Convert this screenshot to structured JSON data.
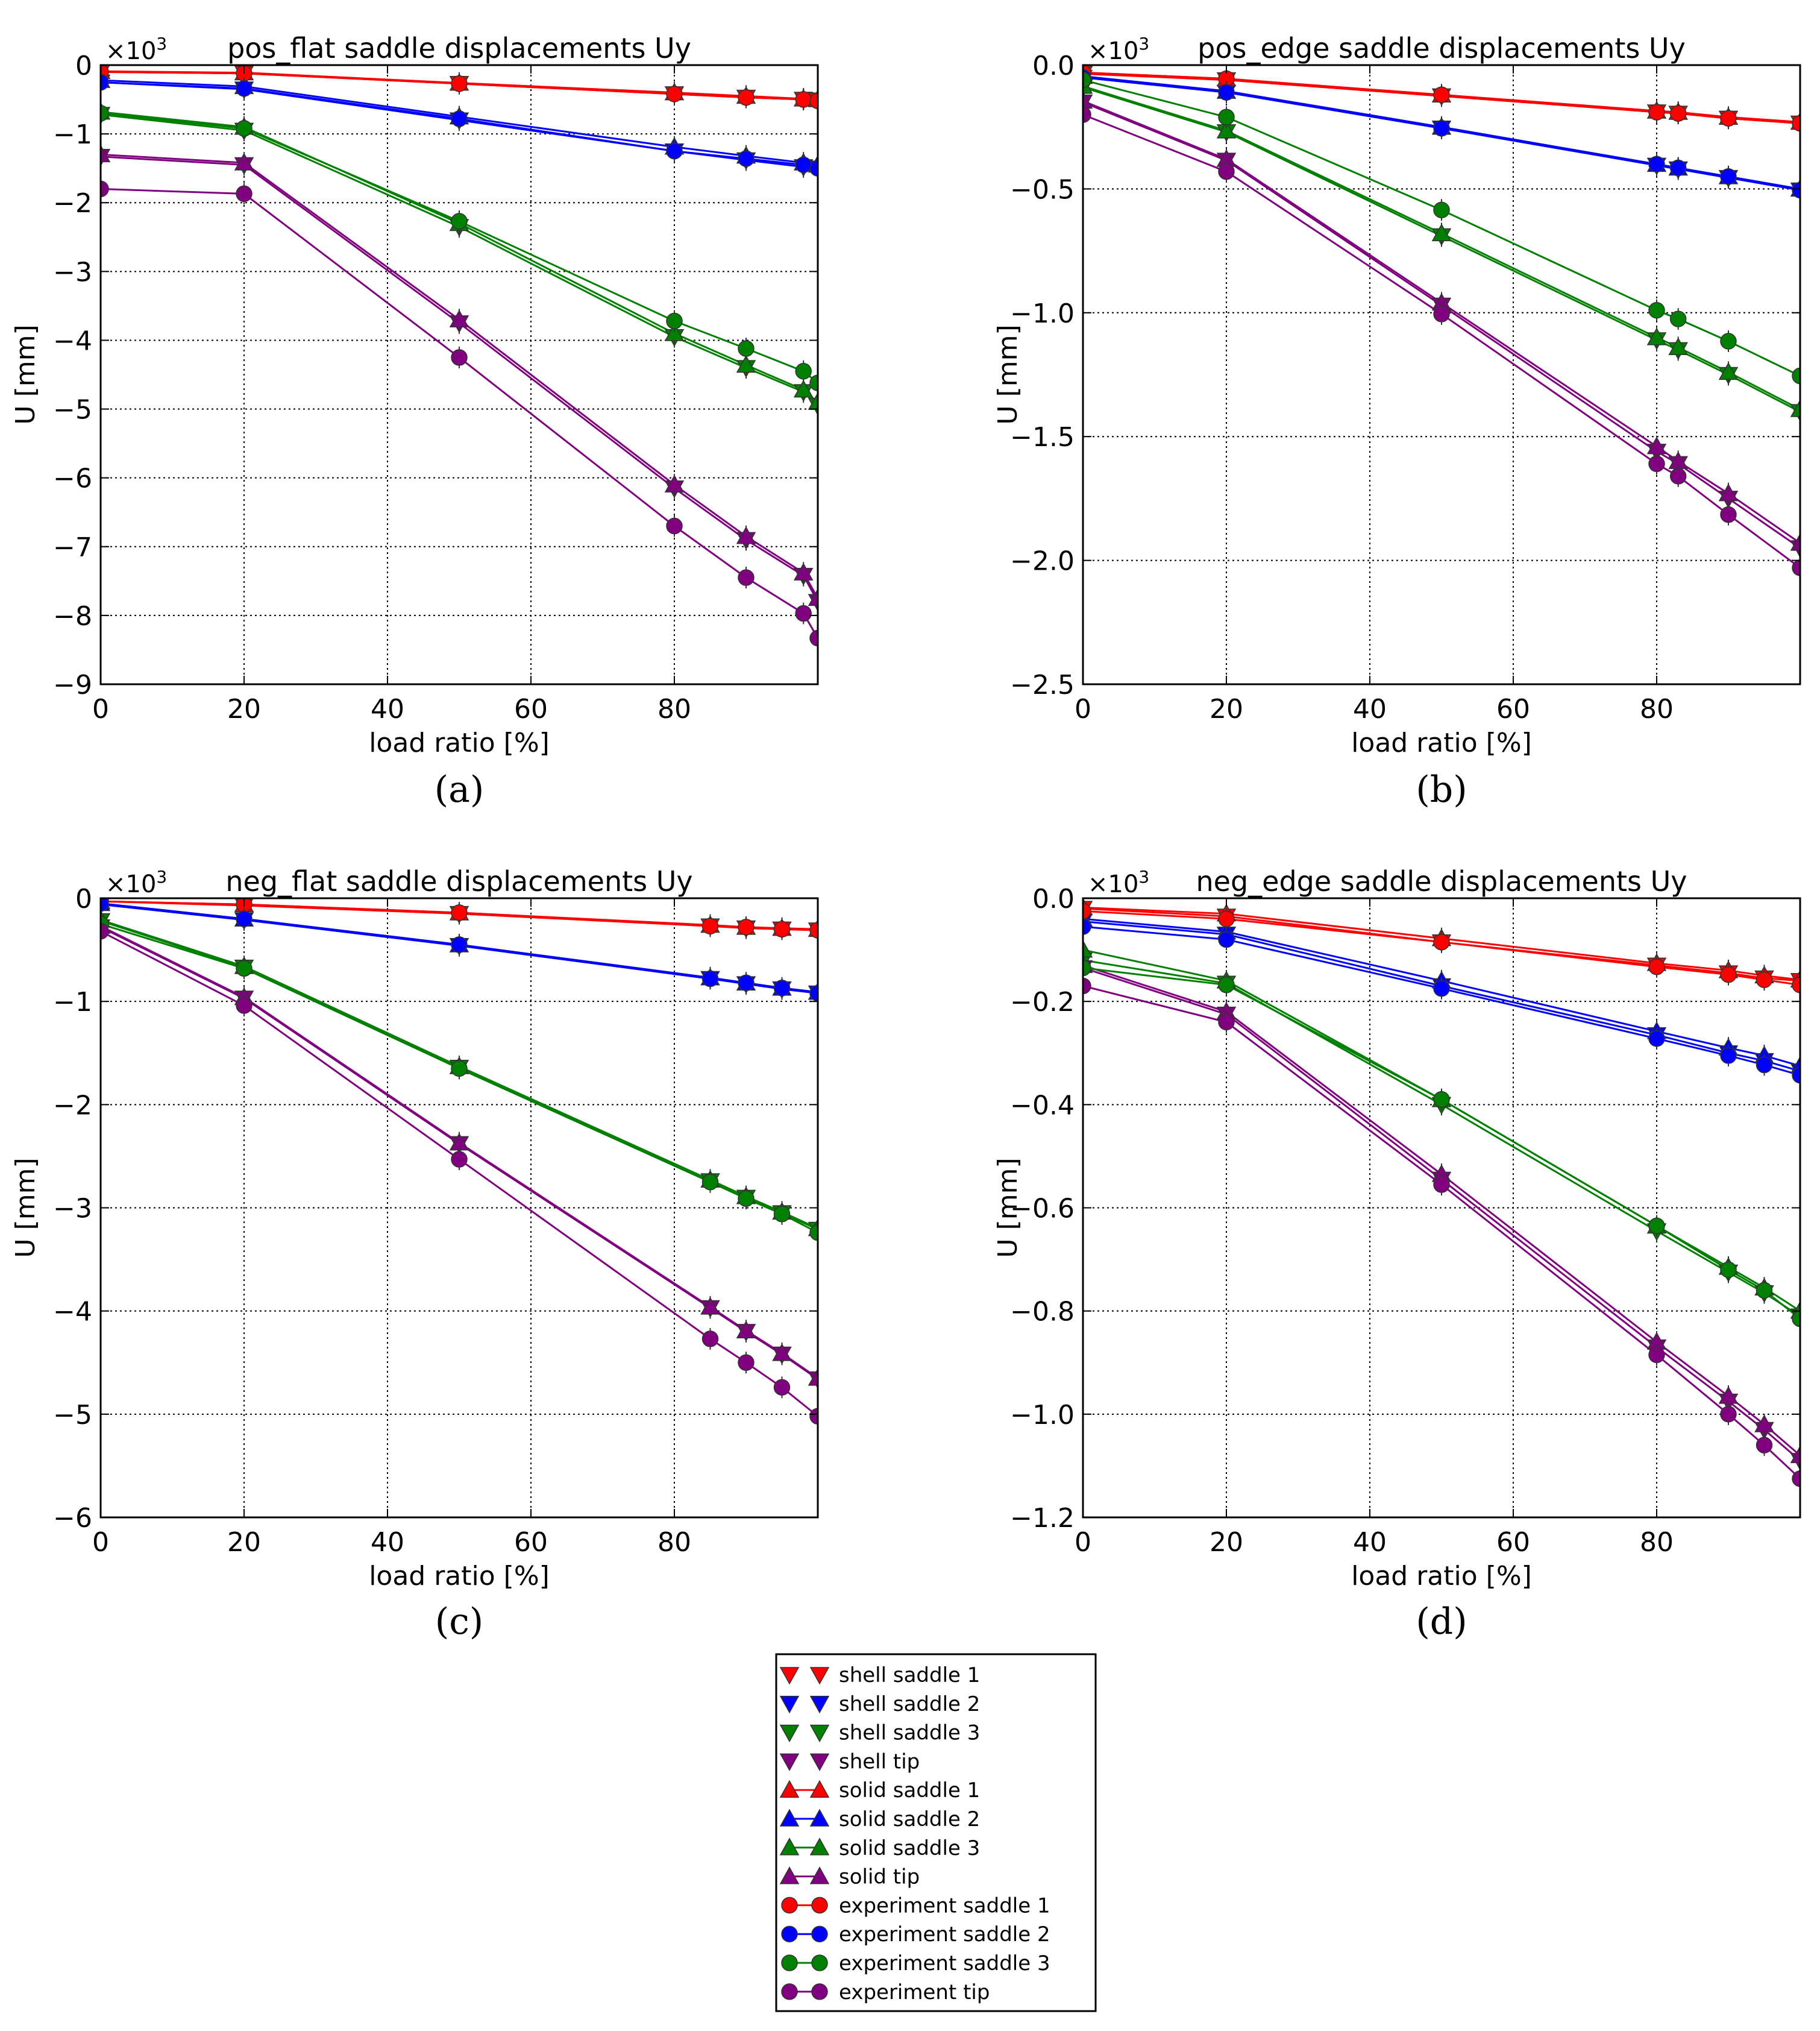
{
  "series_styles": [
    {
      "key": "shell_s1",
      "label": "shell saddle 1",
      "color": "#ff0000",
      "marker": "tri-down"
    },
    {
      "key": "shell_s2",
      "label": "shell saddle 2",
      "color": "#0000ff",
      "marker": "tri-down"
    },
    {
      "key": "shell_s3",
      "label": "shell saddle 3",
      "color": "#008000",
      "marker": "tri-down"
    },
    {
      "key": "shell_tip",
      "label": "shell tip",
      "color": "#800080",
      "marker": "tri-down"
    },
    {
      "key": "solid_s1",
      "label": "solid saddle 1",
      "color": "#ff0000",
      "marker": "tri-up"
    },
    {
      "key": "solid_s2",
      "label": "solid saddle 2",
      "color": "#0000ff",
      "marker": "tri-up"
    },
    {
      "key": "solid_s3",
      "label": "solid saddle 3",
      "color": "#008000",
      "marker": "tri-up"
    },
    {
      "key": "solid_tip",
      "label": "solid tip",
      "color": "#800080",
      "marker": "tri-up"
    },
    {
      "key": "exp_s1",
      "label": "experiment saddle 1",
      "color": "#ff0000",
      "marker": "circle"
    },
    {
      "key": "exp_s2",
      "label": "experiment saddle 2",
      "color": "#0000ff",
      "marker": "circle"
    },
    {
      "key": "exp_s3",
      "label": "experiment saddle 3",
      "color": "#008000",
      "marker": "circle"
    },
    {
      "key": "exp_tip",
      "label": "experiment tip",
      "color": "#800080",
      "marker": "circle"
    }
  ],
  "chart_data": [
    {
      "type": "line",
      "panel_label": "(a)",
      "title": "pos_flat saddle displacements Uy",
      "xlabel": "load ratio [%]",
      "ylabel": "U [mm]",
      "multiplier": "×10",
      "multiplier_exp": "3",
      "xlim": [
        0,
        100
      ],
      "ylim": [
        -9,
        0
      ],
      "xticks": [
        0,
        20,
        40,
        60,
        80
      ],
      "yticks": [
        0,
        -1,
        -2,
        -3,
        -4,
        -5,
        -6,
        -7,
        -8,
        -9
      ],
      "ytick_labels": [
        "0",
        "−1",
        "−2",
        "−3",
        "−4",
        "−5",
        "−6",
        "−7",
        "−8",
        "−9"
      ],
      "xtick_labels": [
        "0",
        "20",
        "40",
        "60",
        "80"
      ],
      "grid": true,
      "x": [
        0,
        20,
        50,
        80,
        90,
        98,
        100
      ],
      "series": [
        {
          "key": "shell_s1",
          "values": [
            -0.1,
            -0.12,
            -0.27,
            -0.42,
            -0.47,
            -0.5,
            -0.51
          ]
        },
        {
          "key": "shell_s2",
          "values": [
            -0.25,
            -0.35,
            -0.8,
            -1.25,
            -1.38,
            -1.48,
            -1.5
          ]
        },
        {
          "key": "shell_s3",
          "values": [
            -0.72,
            -0.95,
            -2.35,
            -3.95,
            -4.4,
            -4.75,
            -4.95
          ]
        },
        {
          "key": "shell_tip",
          "values": [
            -1.33,
            -1.45,
            -3.75,
            -6.15,
            -6.9,
            -7.42,
            -7.8
          ]
        },
        {
          "key": "solid_s1",
          "values": [
            -0.09,
            -0.11,
            -0.26,
            -0.4,
            -0.45,
            -0.49,
            -0.5
          ]
        },
        {
          "key": "solid_s2",
          "values": [
            -0.22,
            -0.31,
            -0.75,
            -1.19,
            -1.32,
            -1.42,
            -1.45
          ]
        },
        {
          "key": "solid_s3",
          "values": [
            -0.68,
            -0.9,
            -2.3,
            -3.9,
            -4.36,
            -4.72,
            -4.9
          ]
        },
        {
          "key": "solid_tip",
          "values": [
            -1.3,
            -1.42,
            -3.7,
            -6.1,
            -6.85,
            -7.38,
            -7.75
          ]
        },
        {
          "key": "exp_s1",
          "values": [
            -0.1,
            -0.12,
            -0.27,
            -0.42,
            -0.47,
            -0.5,
            -0.52
          ]
        },
        {
          "key": "exp_s2",
          "values": [
            -0.25,
            -0.34,
            -0.78,
            -1.25,
            -1.36,
            -1.45,
            -1.5
          ]
        },
        {
          "key": "exp_s3",
          "values": [
            -0.7,
            -0.92,
            -2.27,
            -3.72,
            -4.12,
            -4.45,
            -4.62
          ]
        },
        {
          "key": "exp_tip",
          "values": [
            -1.8,
            -1.87,
            -4.25,
            -6.7,
            -7.45,
            -7.97,
            -8.33
          ]
        }
      ]
    },
    {
      "type": "line",
      "panel_label": "(b)",
      "title": "pos_edge saddle displacements Uy",
      "xlabel": "load ratio [%]",
      "ylabel": "U [mm]",
      "multiplier": "×10",
      "multiplier_exp": "3",
      "xlim": [
        0,
        100
      ],
      "ylim": [
        -2.5,
        0
      ],
      "xticks": [
        0,
        20,
        40,
        60,
        80
      ],
      "yticks": [
        0,
        -0.5,
        -1.0,
        -1.5,
        -2.0,
        -2.5
      ],
      "ytick_labels": [
        "0.0",
        "−0.5",
        "−1.0",
        "−1.5",
        "−2.0",
        "−2.5"
      ],
      "xtick_labels": [
        "0",
        "20",
        "40",
        "60",
        "80"
      ],
      "grid": true,
      "x": [
        0,
        20,
        50,
        80,
        83,
        90,
        100
      ],
      "series": [
        {
          "key": "shell_s1",
          "values": [
            -0.035,
            -0.06,
            -0.125,
            -0.19,
            -0.195,
            -0.215,
            -0.235
          ]
        },
        {
          "key": "shell_s2",
          "values": [
            -0.05,
            -0.11,
            -0.255,
            -0.405,
            -0.42,
            -0.455,
            -0.505
          ]
        },
        {
          "key": "shell_s3",
          "values": [
            -0.09,
            -0.27,
            -0.69,
            -1.11,
            -1.15,
            -1.25,
            -1.4
          ]
        },
        {
          "key": "shell_tip",
          "values": [
            -0.15,
            -0.385,
            -0.97,
            -1.56,
            -1.61,
            -1.75,
            -1.95
          ]
        },
        {
          "key": "solid_s1",
          "values": [
            -0.03,
            -0.055,
            -0.12,
            -0.185,
            -0.19,
            -0.21,
            -0.23
          ]
        },
        {
          "key": "solid_s2",
          "values": [
            -0.045,
            -0.105,
            -0.25,
            -0.4,
            -0.415,
            -0.45,
            -0.5
          ]
        },
        {
          "key": "solid_s3",
          "values": [
            -0.085,
            -0.265,
            -0.68,
            -1.1,
            -1.14,
            -1.24,
            -1.39
          ]
        },
        {
          "key": "solid_tip",
          "values": [
            -0.145,
            -0.38,
            -0.96,
            -1.54,
            -1.6,
            -1.73,
            -1.93
          ]
        },
        {
          "key": "exp_s1",
          "values": [
            -0.03,
            -0.055,
            -0.12,
            -0.19,
            -0.195,
            -0.215,
            -0.235
          ]
        },
        {
          "key": "exp_s2",
          "values": [
            -0.05,
            -0.11,
            -0.255,
            -0.4,
            -0.415,
            -0.45,
            -0.505
          ]
        },
        {
          "key": "exp_s3",
          "values": [
            -0.06,
            -0.21,
            -0.585,
            -0.99,
            -1.025,
            -1.115,
            -1.255
          ]
        },
        {
          "key": "exp_tip",
          "values": [
            -0.2,
            -0.43,
            -1.005,
            -1.61,
            -1.66,
            -1.815,
            -2.03
          ]
        }
      ]
    },
    {
      "type": "line",
      "panel_label": "(c)",
      "title": "neg_flat saddle displacements Uy",
      "xlabel": "load ratio [%]",
      "ylabel": "U [mm]",
      "multiplier": "×10",
      "multiplier_exp": "3",
      "xlim": [
        0,
        100
      ],
      "ylim": [
        -6,
        0
      ],
      "xticks": [
        0,
        20,
        40,
        60,
        80
      ],
      "yticks": [
        0,
        -1,
        -2,
        -3,
        -4,
        -5,
        -6
      ],
      "ytick_labels": [
        "0",
        "−1",
        "−2",
        "−3",
        "−4",
        "−5",
        "−6"
      ],
      "xtick_labels": [
        "0",
        "20",
        "40",
        "60",
        "80"
      ],
      "grid": true,
      "x": [
        0,
        20,
        50,
        85,
        90,
        95,
        100
      ],
      "series": [
        {
          "key": "shell_s1",
          "values": [
            -0.03,
            -0.07,
            -0.15,
            -0.27,
            -0.29,
            -0.3,
            -0.31
          ]
        },
        {
          "key": "shell_s2",
          "values": [
            -0.06,
            -0.21,
            -0.46,
            -0.78,
            -0.83,
            -0.88,
            -0.92
          ]
        },
        {
          "key": "shell_s3",
          "values": [
            -0.22,
            -0.67,
            -1.64,
            -2.74,
            -2.9,
            -3.05,
            -3.21
          ]
        },
        {
          "key": "shell_tip",
          "values": [
            -0.28,
            -0.97,
            -2.38,
            -3.97,
            -4.2,
            -4.42,
            -4.66
          ]
        },
        {
          "key": "solid_s1",
          "values": [
            -0.03,
            -0.06,
            -0.14,
            -0.26,
            -0.28,
            -0.29,
            -0.3
          ]
        },
        {
          "key": "solid_s2",
          "values": [
            -0.05,
            -0.2,
            -0.45,
            -0.77,
            -0.82,
            -0.87,
            -0.91
          ]
        },
        {
          "key": "solid_s3",
          "values": [
            -0.21,
            -0.66,
            -1.63,
            -2.73,
            -2.89,
            -3.04,
            -3.2
          ]
        },
        {
          "key": "solid_tip",
          "values": [
            -0.27,
            -0.96,
            -2.37,
            -3.96,
            -4.19,
            -4.41,
            -4.65
          ]
        },
        {
          "key": "exp_s1",
          "values": [
            -0.03,
            -0.06,
            -0.14,
            -0.27,
            -0.28,
            -0.3,
            -0.31
          ]
        },
        {
          "key": "exp_s2",
          "values": [
            -0.05,
            -0.2,
            -0.45,
            -0.78,
            -0.82,
            -0.87,
            -0.92
          ]
        },
        {
          "key": "exp_s3",
          "values": [
            -0.25,
            -0.68,
            -1.65,
            -2.75,
            -2.91,
            -3.06,
            -3.24
          ]
        },
        {
          "key": "exp_tip",
          "values": [
            -0.32,
            -1.04,
            -2.53,
            -4.27,
            -4.5,
            -4.74,
            -5.02
          ]
        }
      ]
    },
    {
      "type": "line",
      "panel_label": "(d)",
      "title": "neg_edge saddle displacements Uy",
      "xlabel": "load ratio [%]",
      "ylabel": "U [mm]",
      "multiplier": "×10",
      "multiplier_exp": "3",
      "xlim": [
        0,
        100
      ],
      "ylim": [
        -1.2,
        0
      ],
      "xticks": [
        0,
        20,
        40,
        60,
        80
      ],
      "yticks": [
        0,
        -0.2,
        -0.4,
        -0.6,
        -0.8,
        -1.0,
        -1.2
      ],
      "ytick_labels": [
        "0.0",
        "−0.2",
        "−0.4",
        "−0.6",
        "−0.8",
        "−1.0",
        "−1.2"
      ],
      "xtick_labels": [
        "0",
        "20",
        "40",
        "60",
        "80"
      ],
      "grid": true,
      "x": [
        0,
        20,
        50,
        80,
        90,
        95,
        100
      ],
      "series": [
        {
          "key": "shell_s1",
          "values": [
            -0.02,
            -0.035,
            -0.085,
            -0.13,
            -0.145,
            -0.155,
            -0.16
          ]
        },
        {
          "key": "shell_s2",
          "values": [
            -0.045,
            -0.07,
            -0.17,
            -0.265,
            -0.3,
            -0.315,
            -0.335
          ]
        },
        {
          "key": "shell_s3",
          "values": [
            -0.12,
            -0.165,
            -0.4,
            -0.645,
            -0.725,
            -0.765,
            -0.81
          ]
        },
        {
          "key": "shell_tip",
          "values": [
            -0.135,
            -0.225,
            -0.545,
            -0.87,
            -0.975,
            -1.03,
            -1.09
          ]
        },
        {
          "key": "solid_s1",
          "values": [
            -0.018,
            -0.03,
            -0.078,
            -0.126,
            -0.14,
            -0.15,
            -0.158
          ]
        },
        {
          "key": "solid_s2",
          "values": [
            -0.04,
            -0.065,
            -0.16,
            -0.258,
            -0.29,
            -0.305,
            -0.325
          ]
        },
        {
          "key": "solid_s3",
          "values": [
            -0.1,
            -0.16,
            -0.39,
            -0.635,
            -0.715,
            -0.755,
            -0.8
          ]
        },
        {
          "key": "solid_tip",
          "values": [
            -0.13,
            -0.22,
            -0.535,
            -0.86,
            -0.965,
            -1.02,
            -1.08
          ]
        },
        {
          "key": "exp_s1",
          "values": [
            -0.025,
            -0.04,
            -0.085,
            -0.133,
            -0.148,
            -0.158,
            -0.168
          ]
        },
        {
          "key": "exp_s2",
          "values": [
            -0.055,
            -0.08,
            -0.175,
            -0.272,
            -0.305,
            -0.323,
            -0.343
          ]
        },
        {
          "key": "exp_s3",
          "values": [
            -0.135,
            -0.168,
            -0.39,
            -0.635,
            -0.72,
            -0.76,
            -0.815
          ]
        },
        {
          "key": "exp_tip",
          "values": [
            -0.17,
            -0.24,
            -0.555,
            -0.885,
            -1.0,
            -1.06,
            -1.125
          ]
        }
      ]
    }
  ]
}
